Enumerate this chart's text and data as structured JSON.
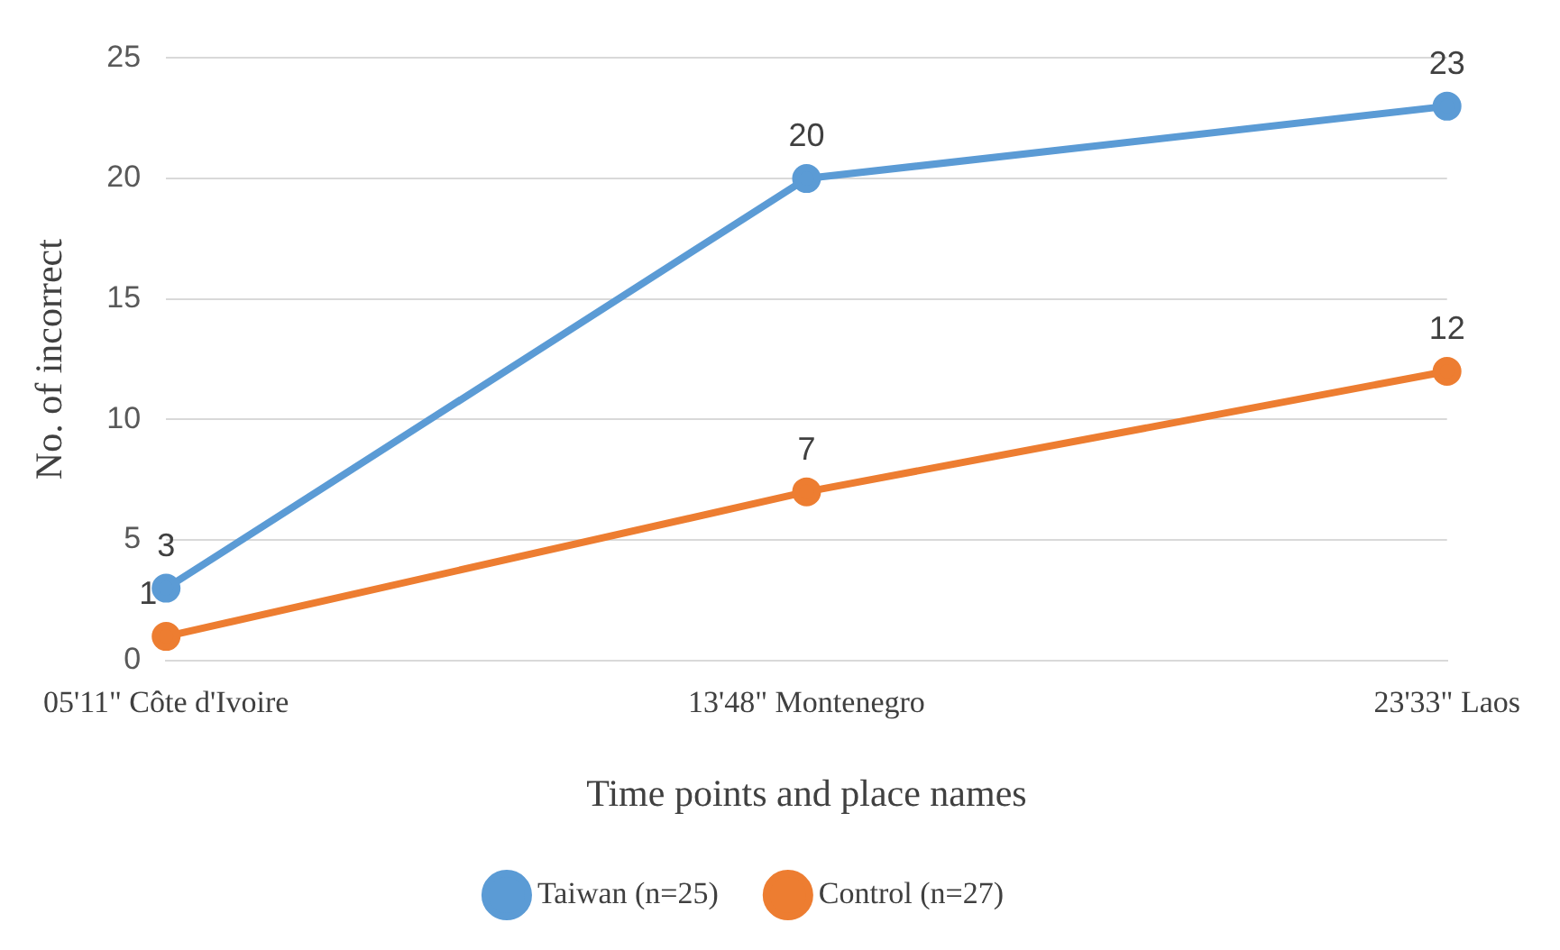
{
  "chart_data": {
    "type": "line",
    "xlabel": "Time points and place names",
    "ylabel": "No. of incorrect",
    "categories": [
      "05'11\" Côte d'Ivoire",
      "13'48\" Montenegro",
      "23'33\" Laos"
    ],
    "series": [
      {
        "name": "Taiwan (n=25)",
        "color": "#5b9bd5",
        "values": [
          3,
          20,
          23
        ]
      },
      {
        "name": "Control (n=27)",
        "color": "#ed7d31",
        "values": [
          1,
          7,
          12
        ]
      }
    ],
    "ylim": [
      0,
      25
    ],
    "yticks": [
      0,
      5,
      10,
      15,
      20,
      25
    ],
    "grid": "y",
    "legend": "bottom",
    "marker": "circle",
    "line_style": "solid",
    "data_labels": true
  }
}
